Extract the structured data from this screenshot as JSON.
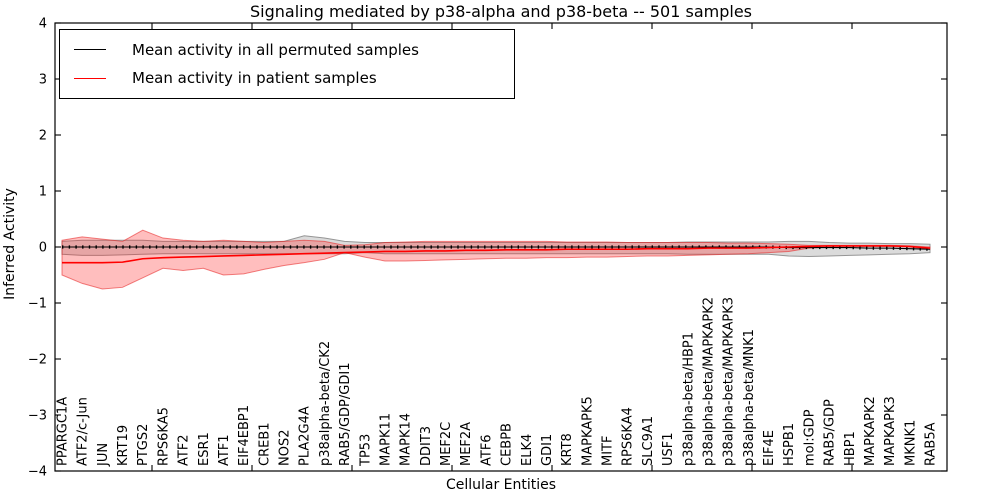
{
  "title": "Signaling mediated by p38-alpha and p38-beta -- 501 samples",
  "axes": {
    "ylabel": "Inferred Activity",
    "xlabel": "Cellular Entities",
    "yticks": [
      4,
      3,
      2,
      1,
      0,
      -1,
      -2,
      -3,
      -4
    ],
    "ylim": [
      -4,
      4
    ]
  },
  "legend": {
    "items": [
      {
        "label": "Mean activity in all permuted samples",
        "color": "#000000"
      },
      {
        "label": "Mean activity in patient samples",
        "color": "#ff0000"
      }
    ]
  },
  "chart_data": {
    "type": "line",
    "title": "Signaling mediated by p38-alpha and p38-beta -- 501 samples",
    "xlabel": "Cellular Entities",
    "ylabel": "Inferred Activity",
    "ylim": [
      -4,
      4
    ],
    "yticks": [
      4,
      3,
      2,
      1,
      0,
      -1,
      -2,
      -3,
      -4
    ],
    "grid": false,
    "legend_position": "upper left",
    "categories": [
      "PPARGC1A",
      "ATF2/c-Jun",
      "JUN",
      "KRT19",
      "PTGS2",
      "RPS6KA5",
      "ATF2",
      "ESR1",
      "ATF1",
      "EIF4EBP1",
      "CREB1",
      "NOS2",
      "PLA2G4A",
      "p38alpha-beta/CK2",
      "RAB5/GDP/GDI1",
      "TP53",
      "MAPK11",
      "MAPK14",
      "DDIT3",
      "MEF2C",
      "MEF2A",
      "ATF6",
      "CEBPB",
      "ELK4",
      "GDI1",
      "KRT8",
      "MAPKAPK5",
      "MITF",
      "RPS6KA4",
      "SLC9A1",
      "USF1",
      "p38alpha-beta/HBP1",
      "p38alpha-beta/MAPKAPK2",
      "p38alpha-beta/MAPKAPK3",
      "p38alpha-beta/MNK1",
      "EIF4E",
      "HSPB1",
      "mol:GDP",
      "RAB5/GDP",
      "HBP1",
      "MAPKAPK2",
      "MAPKAPK3",
      "MKNK1",
      "RAB5A"
    ],
    "series": [
      {
        "name": "Mean activity in all permuted samples",
        "color": "#000000",
        "band_fill": "rgba(160,160,160,0.38)",
        "band_edge": "rgba(140,140,140,0.9)",
        "values": [
          0,
          0,
          0,
          0,
          0,
          0,
          0,
          0,
          0,
          0,
          0,
          0,
          0,
          0,
          0,
          0,
          0,
          0,
          0,
          0,
          0,
          0,
          0,
          0,
          0,
          0,
          0,
          0,
          0,
          0,
          0,
          0,
          0,
          0,
          0,
          0,
          -0.01,
          -0.01,
          -0.01,
          -0.01,
          -0.02,
          -0.02,
          -0.03,
          -0.04
        ],
        "band_upper": [
          0.1,
          0.12,
          0.12,
          0.12,
          0.12,
          0.1,
          0.1,
          0.1,
          0.1,
          0.1,
          0.1,
          0.1,
          0.2,
          0.16,
          0.1,
          0.08,
          0.08,
          0.08,
          0.08,
          0.08,
          0.08,
          0.08,
          0.08,
          0.08,
          0.08,
          0.08,
          0.08,
          0.08,
          0.08,
          0.08,
          0.08,
          0.09,
          0.09,
          0.09,
          0.09,
          0.09,
          0.1,
          0.1,
          0.08,
          0.07,
          0.07,
          0.06,
          0.06,
          0.05
        ],
        "band_lower": [
          -0.13,
          -0.15,
          -0.15,
          -0.14,
          -0.13,
          -0.12,
          -0.12,
          -0.12,
          -0.12,
          -0.12,
          -0.12,
          -0.12,
          -0.12,
          -0.12,
          -0.12,
          -0.1,
          -0.12,
          -0.12,
          -0.12,
          -0.12,
          -0.12,
          -0.12,
          -0.12,
          -0.12,
          -0.12,
          -0.12,
          -0.12,
          -0.12,
          -0.12,
          -0.12,
          -0.12,
          -0.13,
          -0.13,
          -0.13,
          -0.13,
          -0.13,
          -0.16,
          -0.17,
          -0.16,
          -0.15,
          -0.14,
          -0.13,
          -0.12,
          -0.1
        ]
      },
      {
        "name": "Mean activity in patient samples",
        "color": "#ff0000",
        "band_fill": "rgba(255,40,40,0.30)",
        "band_edge": "rgba(230,30,30,0.55)",
        "values": [
          -0.28,
          -0.28,
          -0.28,
          -0.27,
          -0.21,
          -0.19,
          -0.18,
          -0.17,
          -0.16,
          -0.15,
          -0.14,
          -0.13,
          -0.12,
          -0.11,
          -0.1,
          -0.09,
          -0.08,
          -0.08,
          -0.07,
          -0.07,
          -0.06,
          -0.06,
          -0.05,
          -0.05,
          -0.05,
          -0.04,
          -0.04,
          -0.04,
          -0.04,
          -0.03,
          -0.03,
          -0.03,
          -0.02,
          -0.02,
          -0.02,
          -0.01,
          0.0,
          0.01,
          0.02,
          0.02,
          0.02,
          0.02,
          0.01,
          -0.02
        ],
        "band_upper": [
          0.12,
          0.18,
          0.14,
          0.1,
          0.3,
          0.16,
          0.12,
          0.1,
          0.12,
          0.1,
          0.08,
          0.1,
          0.12,
          0.1,
          0.03,
          0.04,
          0.08,
          0.09,
          0.1,
          0.1,
          0.1,
          0.1,
          0.1,
          0.1,
          0.1,
          0.09,
          0.09,
          0.09,
          0.08,
          0.08,
          0.08,
          0.08,
          0.08,
          0.07,
          0.07,
          0.06,
          0.05,
          0.03,
          0.03,
          0.03,
          0.03,
          0.03,
          0.02,
          0.0
        ],
        "band_lower": [
          -0.5,
          -0.65,
          -0.75,
          -0.72,
          -0.55,
          -0.38,
          -0.42,
          -0.38,
          -0.5,
          -0.48,
          -0.4,
          -0.33,
          -0.28,
          -0.22,
          -0.1,
          -0.18,
          -0.25,
          -0.25,
          -0.24,
          -0.23,
          -0.22,
          -0.21,
          -0.2,
          -0.2,
          -0.19,
          -0.19,
          -0.18,
          -0.18,
          -0.17,
          -0.16,
          -0.16,
          -0.15,
          -0.14,
          -0.13,
          -0.12,
          -0.1,
          -0.08,
          -0.02,
          0.0,
          0.01,
          0.01,
          0.01,
          0.0,
          -0.04
        ]
      }
    ]
  }
}
